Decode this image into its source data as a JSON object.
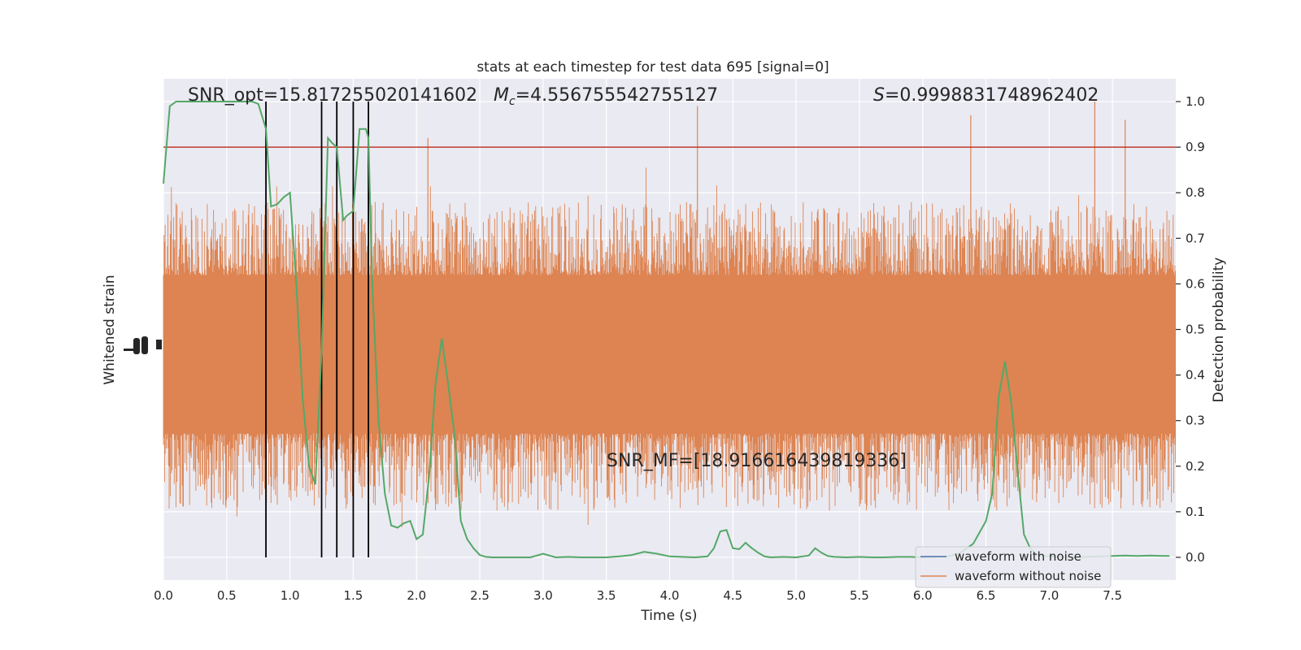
{
  "chart_data": {
    "type": "line",
    "title": "stats at each timestep for test data 695 [signal=0]",
    "xlabel": "Time (s)",
    "ylabel_left": "Whitened strain",
    "ylabel_right": "Detection probability",
    "xlim": [
      0,
      8
    ],
    "ylim_right": [
      -0.05,
      1.05
    ],
    "x_ticks": [
      "0.0",
      "0.5",
      "1.0",
      "1.5",
      "2.0",
      "2.5",
      "3.0",
      "3.5",
      "4.0",
      "4.5",
      "5.0",
      "5.5",
      "6.0",
      "6.5",
      "7.0",
      "7.5"
    ],
    "y_ticks_right": [
      "0.0",
      "0.1",
      "0.2",
      "0.3",
      "0.4",
      "0.5",
      "0.6",
      "0.7",
      "0.8",
      "0.9",
      "1.0"
    ],
    "grid": true,
    "legend_position": "lower-right",
    "annotations": {
      "snr_opt": "SNR_opt=15.817255020141602",
      "mc_symbol": "M",
      "mc_subscript": "c",
      "mc_value": "=4.556755542755127",
      "s_symbol": "S",
      "s_value": "=0.9998831748962402",
      "snr_mf": "SNR_MF=[18.916616439819336]"
    },
    "threshold": 0.9,
    "vertical_markers": [
      0.81,
      1.25,
      1.37,
      1.5,
      1.62
    ],
    "series": [
      {
        "name": "waveform with noise",
        "color": "#4c72b0",
        "kind": "legend-only"
      },
      {
        "name": "waveform without noise",
        "color": "#dd8452",
        "kind": "noise-band"
      },
      {
        "color": "#55a868",
        "kind": "probability",
        "x": [
          0.0,
          0.05,
          0.1,
          0.2,
          0.3,
          0.4,
          0.5,
          0.6,
          0.7,
          0.75,
          0.81,
          0.85,
          0.9,
          0.95,
          1.0,
          1.05,
          1.1,
          1.15,
          1.2,
          1.25,
          1.3,
          1.33,
          1.37,
          1.42,
          1.45,
          1.5,
          1.55,
          1.6,
          1.62,
          1.65,
          1.7,
          1.75,
          1.8,
          1.85,
          1.9,
          1.95,
          2.0,
          2.05,
          2.1,
          2.15,
          2.2,
          2.25,
          2.3,
          2.35,
          2.4,
          2.45,
          2.5,
          2.55,
          2.6,
          2.7,
          2.8,
          2.9,
          3.0,
          3.1,
          3.2,
          3.3,
          3.4,
          3.5,
          3.6,
          3.7,
          3.8,
          3.9,
          4.0,
          4.1,
          4.2,
          4.3,
          4.35,
          4.4,
          4.45,
          4.5,
          4.55,
          4.6,
          4.65,
          4.7,
          4.75,
          4.8,
          4.9,
          5.0,
          5.1,
          5.15,
          5.2,
          5.25,
          5.3,
          5.4,
          5.5,
          5.6,
          5.7,
          5.8,
          5.9,
          6.0,
          6.1,
          6.2,
          6.3,
          6.4,
          6.5,
          6.55,
          6.6,
          6.65,
          6.7,
          6.75,
          6.8,
          6.85,
          6.9,
          7.0,
          7.1,
          7.2,
          7.3,
          7.4,
          7.5,
          7.6,
          7.7,
          7.8,
          7.9,
          7.95
        ],
        "y": [
          0.82,
          0.99,
          1.0,
          1.0,
          1.0,
          1.0,
          1.0,
          1.0,
          1.0,
          0.995,
          0.94,
          0.77,
          0.775,
          0.79,
          0.8,
          0.6,
          0.35,
          0.2,
          0.16,
          0.45,
          0.92,
          0.91,
          0.9,
          0.74,
          0.75,
          0.76,
          0.94,
          0.94,
          0.92,
          0.6,
          0.3,
          0.14,
          0.07,
          0.065,
          0.075,
          0.08,
          0.04,
          0.05,
          0.18,
          0.38,
          0.48,
          0.38,
          0.27,
          0.08,
          0.04,
          0.02,
          0.005,
          0.001,
          0.0,
          0.0,
          0.0,
          0.0,
          0.008,
          0.0,
          0.001,
          0.0,
          0.0,
          0.0,
          0.002,
          0.005,
          0.012,
          0.008,
          0.002,
          0.001,
          0.0,
          0.002,
          0.02,
          0.057,
          0.06,
          0.02,
          0.018,
          0.032,
          0.02,
          0.01,
          0.002,
          0.0,
          0.001,
          0.0,
          0.004,
          0.02,
          0.01,
          0.003,
          0.001,
          0.0,
          0.001,
          0.0,
          0.0,
          0.001,
          0.001,
          0.0,
          0.001,
          0.002,
          0.01,
          0.03,
          0.08,
          0.14,
          0.35,
          0.43,
          0.34,
          0.19,
          0.05,
          0.02,
          0.005,
          0.002,
          0.001,
          0.0,
          0.001,
          0.002,
          0.003,
          0.004,
          0.003,
          0.004,
          0.003,
          0.003
        ]
      }
    ]
  }
}
